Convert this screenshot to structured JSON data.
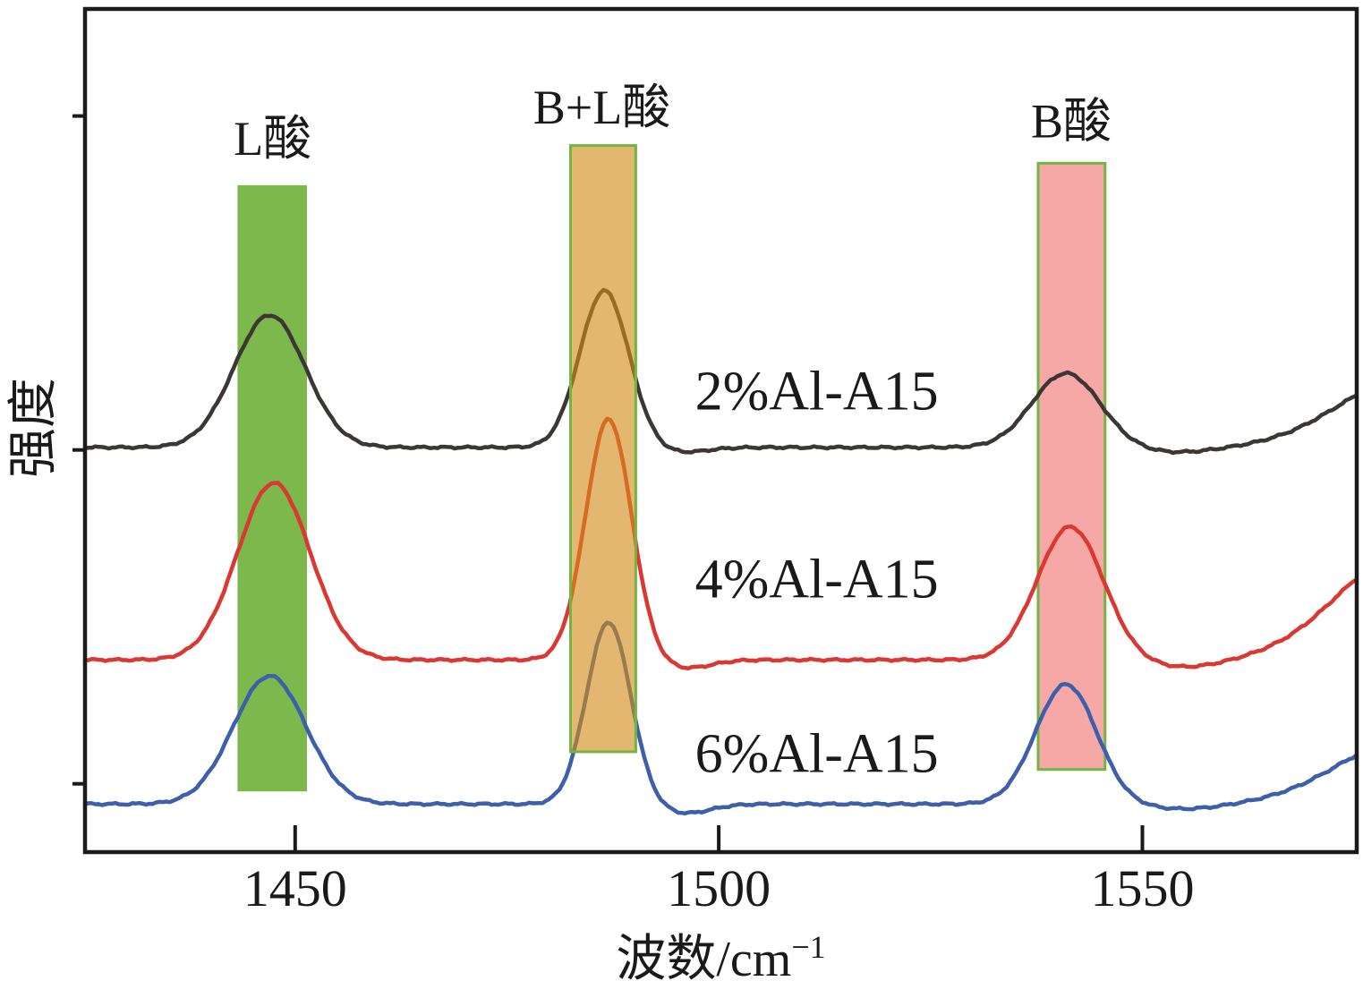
{
  "figure": {
    "background": "#ffffff",
    "frame_color": "#1a1a1a",
    "text_color": "#1a1a1a"
  },
  "chart_data": {
    "type": "line",
    "description": "Py-FTIR acid-site spectra of Al-A15 catalysts (stacked offset curves)",
    "title": "",
    "xlabel": "波数/cm⁻¹",
    "xlabel_base": "波数/cm",
    "xlabel_sup": "−1",
    "ylabel": "强度",
    "x_range_cm1": [
      1425.2,
      1575.3
    ],
    "y_range_au": [
      0,
      100
    ],
    "x_ticks": [
      "1450",
      "1500",
      "1550"
    ],
    "x_tick_values": [
      1450,
      1500,
      1550
    ],
    "y_tick_values_au": [
      87.3,
      47.7,
      8.1
    ],
    "grid": false,
    "legend": "inline-labels",
    "series": [
      {
        "name": "2%Al-A15",
        "color": "#3c3735",
        "baseline_au": 48.0,
        "peaks": [
          {
            "assignment": "L酸",
            "center_cm1": 1447.0,
            "height_au": 15.7,
            "sigma_cm1": 4.2
          },
          {
            "assignment": "B+L酸",
            "center_cm1": 1486.5,
            "height_au": 18.6,
            "sigma_cm1": 2.9
          },
          {
            "assignment": "",
            "center_cm1": 1495.5,
            "height_au": -0.6,
            "sigma_cm1": 3.0
          },
          {
            "assignment": "B酸",
            "center_cm1": 1541.0,
            "height_au": 8.8,
            "sigma_cm1": 4.0
          },
          {
            "assignment": "",
            "center_cm1": 1554.0,
            "height_au": -0.6,
            "sigma_cm1": 4.5
          },
          {
            "assignment": "edge-rise",
            "center_cm1": 1581.0,
            "height_au": 8.0,
            "sigma_cm1": 8.0
          }
        ],
        "label_pos": {
          "x_cm1": 1497.2,
          "y_au": 54.6
        }
      },
      {
        "name": "4%Al-A15",
        "color": "#da3832",
        "baseline_au": 22.8,
        "peaks": [
          {
            "assignment": "L酸",
            "center_cm1": 1447.5,
            "height_au": 21.0,
            "sigma_cm1": 4.3
          },
          {
            "assignment": "B+L酸",
            "center_cm1": 1487.0,
            "height_au": 28.6,
            "sigma_cm1": 2.7
          },
          {
            "assignment": "",
            "center_cm1": 1496.0,
            "height_au": -1.0,
            "sigma_cm1": 3.0
          },
          {
            "assignment": "B酸",
            "center_cm1": 1541.5,
            "height_au": 15.8,
            "sigma_cm1": 3.9
          },
          {
            "assignment": "",
            "center_cm1": 1555.0,
            "height_au": -0.9,
            "sigma_cm1": 4.5
          },
          {
            "assignment": "edge-rise",
            "center_cm1": 1581.0,
            "height_au": 12.5,
            "sigma_cm1": 8.0
          }
        ],
        "label_pos": {
          "x_cm1": 1497.2,
          "y_au": 32.3
        }
      },
      {
        "name": "6%Al-A15",
        "color": "#3e5fa9",
        "baseline_au": 5.7,
        "peaks": [
          {
            "assignment": "L酸",
            "center_cm1": 1447.0,
            "height_au": 15.2,
            "sigma_cm1": 4.3
          },
          {
            "assignment": "B+L酸",
            "center_cm1": 1487.0,
            "height_au": 21.6,
            "sigma_cm1": 2.6
          },
          {
            "assignment": "",
            "center_cm1": 1496.0,
            "height_au": -1.1,
            "sigma_cm1": 3.0
          },
          {
            "assignment": "B酸",
            "center_cm1": 1541.0,
            "height_au": 14.2,
            "sigma_cm1": 3.6
          },
          {
            "assignment": "",
            "center_cm1": 1555.0,
            "height_au": -0.6,
            "sigma_cm1": 4.5
          },
          {
            "assignment": "edge-rise",
            "center_cm1": 1581.0,
            "height_au": 7.5,
            "sigma_cm1": 8.0
          }
        ],
        "label_pos": {
          "x_cm1": 1497.2,
          "y_au": 11.6
        }
      }
    ],
    "bands": [
      {
        "label": "L酸",
        "x_cm1": [
          1443.2,
          1451.4
        ],
        "y_au": [
          7.2,
          79.1
        ],
        "fill": "#7cb84b",
        "border_color": "none",
        "fill_opacity": 1,
        "layer": "under-curves",
        "label_pos": {
          "x_cm1": 1447.35,
          "y_au": 84.6
        }
      },
      {
        "label": "B+L酸",
        "x_cm1": [
          1482.5,
          1490.2
        ],
        "y_au": [
          11.9,
          83.8
        ],
        "fill": "#d38a19",
        "border_color": "#72b544",
        "fill_opacity": 0.62,
        "layer": "over-curves",
        "label_pos": {
          "x_cm1": 1486.2,
          "y_au": 88.3
        }
      },
      {
        "label": "B酸",
        "x_cm1": [
          1537.7,
          1545.6
        ],
        "y_au": [
          9.8,
          81.7
        ],
        "fill": "#f6a8a6",
        "border_color": "#72b544",
        "fill_opacity": 1,
        "layer": "under-curves",
        "label_pos": {
          "x_cm1": 1541.6,
          "y_au": 86.7
        }
      }
    ]
  }
}
